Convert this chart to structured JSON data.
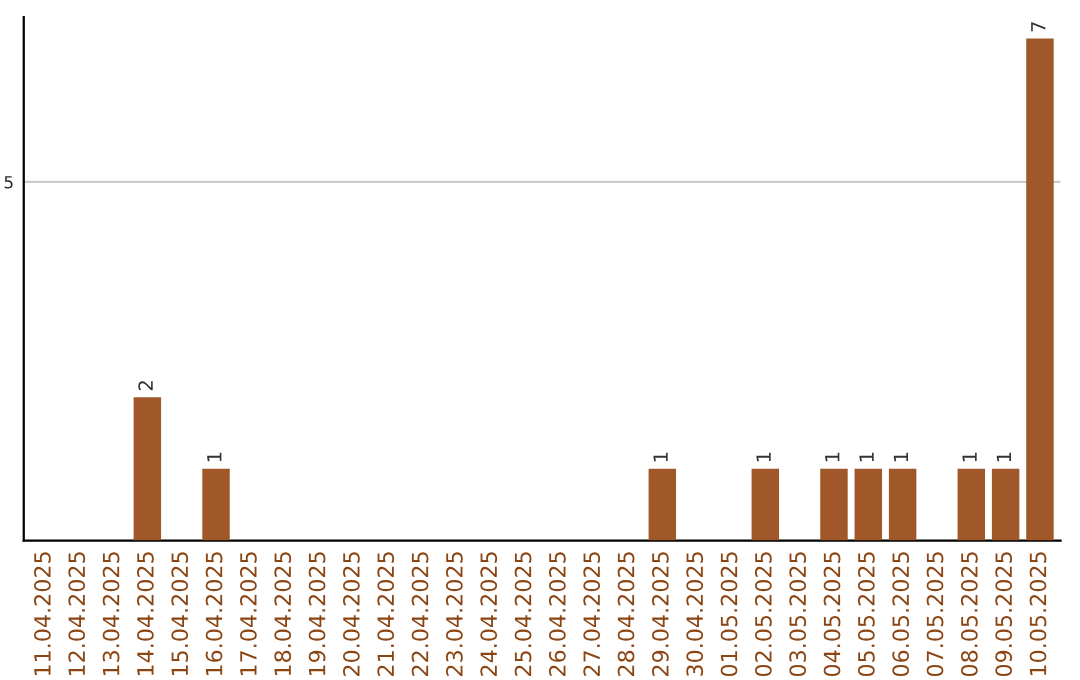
{
  "chart_data": {
    "type": "bar",
    "categories": [
      "11.04.2025",
      "12.04.2025",
      "13.04.2025",
      "14.04.2025",
      "15.04.2025",
      "16.04.2025",
      "17.04.2025",
      "18.04.2025",
      "19.04.2025",
      "20.04.2025",
      "21.04.2025",
      "22.04.2025",
      "23.04.2025",
      "24.04.2025",
      "25.04.2025",
      "26.04.2025",
      "27.04.2025",
      "28.04.2025",
      "29.04.2025",
      "30.04.2025",
      "01.05.2025",
      "02.05.2025",
      "03.05.2025",
      "04.05.2025",
      "05.05.2025",
      "06.05.2025",
      "07.05.2025",
      "08.05.2025",
      "09.05.2025",
      "10.05.2025"
    ],
    "values": [
      0,
      0,
      0,
      2,
      0,
      1,
      0,
      0,
      0,
      0,
      0,
      0,
      0,
      0,
      0,
      0,
      0,
      0,
      1,
      0,
      0,
      1,
      0,
      1,
      1,
      1,
      0,
      1,
      1,
      7
    ],
    "value_labels": [
      null,
      null,
      null,
      "2",
      null,
      "1",
      null,
      null,
      null,
      null,
      null,
      null,
      null,
      null,
      null,
      null,
      null,
      null,
      "1",
      null,
      null,
      "1",
      null,
      "1",
      "1",
      "1",
      null,
      "1",
      "1",
      "7"
    ],
    "color": "#a0582a",
    "ylim": [
      0,
      7.3
    ],
    "yticks": [
      5
    ],
    "grid": "y",
    "legend": false
  }
}
